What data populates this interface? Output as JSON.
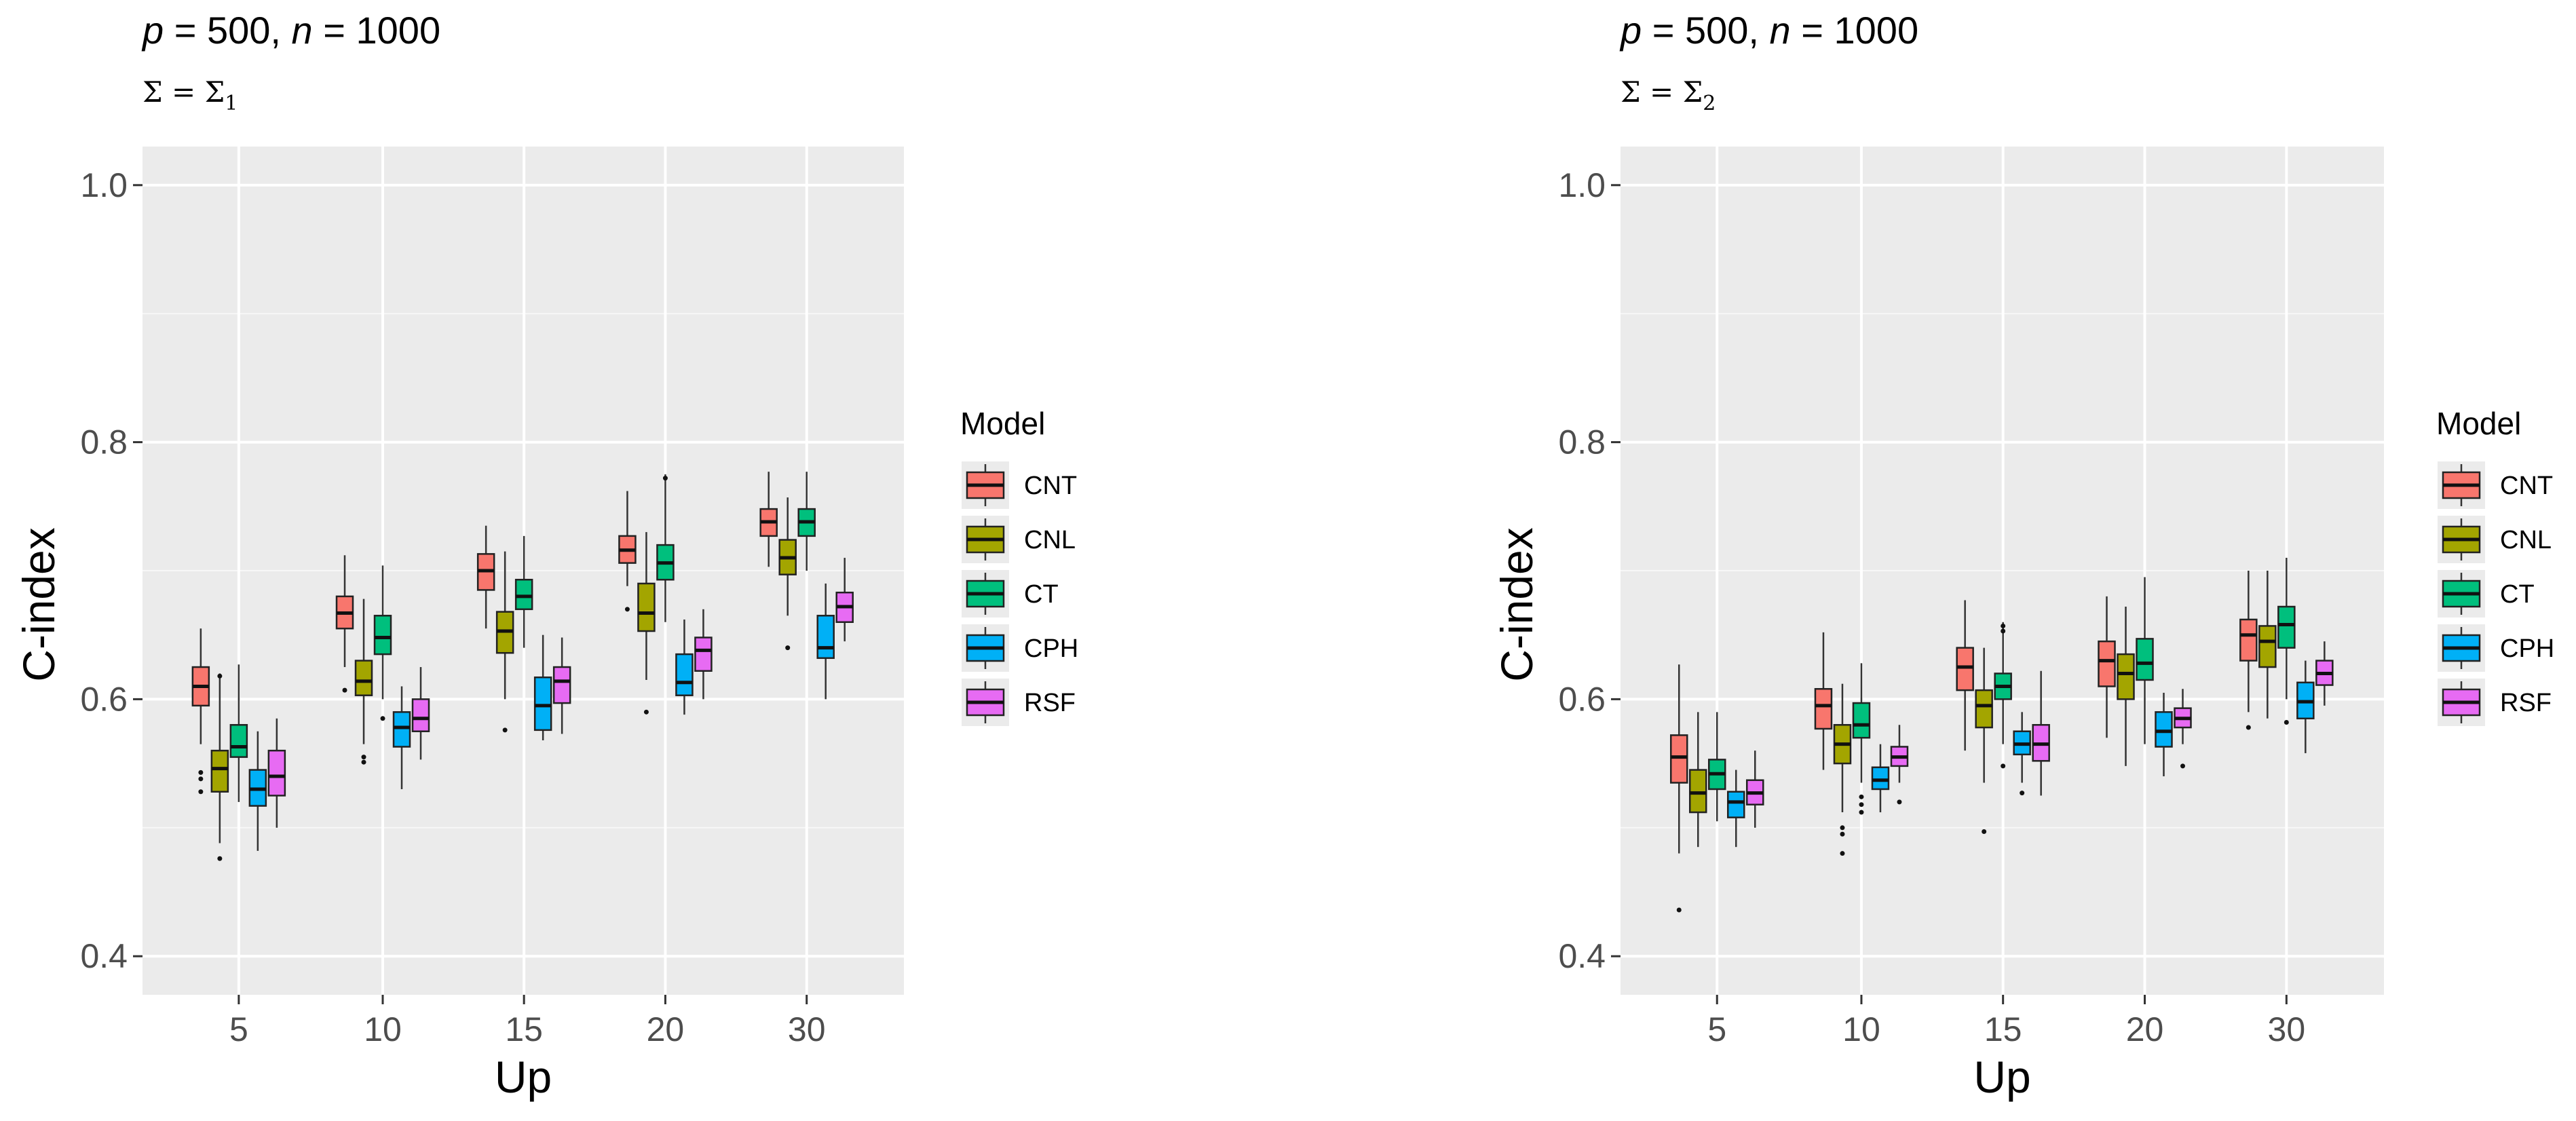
{
  "figure": {
    "legend_title": "Model"
  },
  "chart_data": [
    {
      "type": "boxplot",
      "title": "p = 500, n = 1000",
      "title_parts": {
        "p": "p",
        "p_value": " = 500, ",
        "n": "n",
        "n_value": " = 1000"
      },
      "subtitle": "Σ = Σ1",
      "subtitle_parts": {
        "lhs": "Σ = Σ",
        "sub": "1"
      },
      "xlabel": "Up",
      "ylabel": "C-index",
      "ylim": [
        0.37,
        1.03
      ],
      "yticks": [
        "0.4",
        "0.6",
        "0.8",
        "1.0"
      ],
      "ytick_values": [
        0.4,
        0.6,
        0.8,
        1.0
      ],
      "categories": [
        "5",
        "10",
        "15",
        "20",
        "30"
      ],
      "legend": {
        "title": "Model",
        "position": "right"
      },
      "series": [
        {
          "name": "CNT",
          "color": "#F8766D",
          "boxes": [
            {
              "q1": 0.595,
              "median": 0.61,
              "q3": 0.625,
              "low": 0.565,
              "high": 0.655,
              "outliers": [
                0.543,
                0.538,
                0.528
              ]
            },
            {
              "q1": 0.655,
              "median": 0.667,
              "q3": 0.68,
              "low": 0.625,
              "high": 0.712,
              "outliers": [
                0.607
              ]
            },
            {
              "q1": 0.685,
              "median": 0.7,
              "q3": 0.713,
              "low": 0.655,
              "high": 0.735,
              "outliers": []
            },
            {
              "q1": 0.706,
              "median": 0.716,
              "q3": 0.727,
              "low": 0.688,
              "high": 0.762,
              "outliers": [
                0.67
              ]
            },
            {
              "q1": 0.727,
              "median": 0.738,
              "q3": 0.748,
              "low": 0.703,
              "high": 0.777,
              "outliers": []
            }
          ]
        },
        {
          "name": "CNL",
          "color": "#A3A500",
          "boxes": [
            {
              "q1": 0.528,
              "median": 0.546,
              "q3": 0.56,
              "low": 0.488,
              "high": 0.62,
              "outliers": [
                0.476,
                0.618
              ]
            },
            {
              "q1": 0.603,
              "median": 0.614,
              "q3": 0.63,
              "low": 0.565,
              "high": 0.678,
              "outliers": [
                0.555,
                0.551
              ]
            },
            {
              "q1": 0.636,
              "median": 0.653,
              "q3": 0.668,
              "low": 0.6,
              "high": 0.715,
              "outliers": [
                0.576
              ]
            },
            {
              "q1": 0.653,
              "median": 0.667,
              "q3": 0.69,
              "low": 0.615,
              "high": 0.73,
              "outliers": [
                0.59
              ]
            },
            {
              "q1": 0.697,
              "median": 0.71,
              "q3": 0.724,
              "low": 0.665,
              "high": 0.757,
              "outliers": [
                0.64
              ]
            }
          ]
        },
        {
          "name": "CT",
          "color": "#00BF7D",
          "boxes": [
            {
              "q1": 0.555,
              "median": 0.563,
              "q3": 0.58,
              "low": 0.52,
              "high": 0.627,
              "outliers": []
            },
            {
              "q1": 0.635,
              "median": 0.648,
              "q3": 0.665,
              "low": 0.6,
              "high": 0.704,
              "outliers": [
                0.585
              ]
            },
            {
              "q1": 0.67,
              "median": 0.68,
              "q3": 0.693,
              "low": 0.64,
              "high": 0.727,
              "outliers": []
            },
            {
              "q1": 0.693,
              "median": 0.706,
              "q3": 0.72,
              "low": 0.66,
              "high": 0.775,
              "outliers": [
                0.772
              ]
            },
            {
              "q1": 0.727,
              "median": 0.738,
              "q3": 0.748,
              "low": 0.7,
              "high": 0.777,
              "outliers": []
            }
          ]
        },
        {
          "name": "CPH",
          "color": "#00B0F6",
          "boxes": [
            {
              "q1": 0.517,
              "median": 0.53,
              "q3": 0.545,
              "low": 0.482,
              "high": 0.575,
              "outliers": []
            },
            {
              "q1": 0.563,
              "median": 0.578,
              "q3": 0.59,
              "low": 0.53,
              "high": 0.61,
              "outliers": []
            },
            {
              "q1": 0.576,
              "median": 0.595,
              "q3": 0.617,
              "low": 0.568,
              "high": 0.65,
              "outliers": []
            },
            {
              "q1": 0.603,
              "median": 0.613,
              "q3": 0.635,
              "low": 0.588,
              "high": 0.662,
              "outliers": []
            },
            {
              "q1": 0.632,
              "median": 0.64,
              "q3": 0.665,
              "low": 0.6,
              "high": 0.69,
              "outliers": []
            }
          ]
        },
        {
          "name": "RSF",
          "color": "#E76BF3",
          "boxes": [
            {
              "q1": 0.525,
              "median": 0.54,
              "q3": 0.56,
              "low": 0.5,
              "high": 0.585,
              "outliers": []
            },
            {
              "q1": 0.575,
              "median": 0.585,
              "q3": 0.6,
              "low": 0.553,
              "high": 0.625,
              "outliers": []
            },
            {
              "q1": 0.597,
              "median": 0.614,
              "q3": 0.625,
              "low": 0.573,
              "high": 0.648,
              "outliers": []
            },
            {
              "q1": 0.622,
              "median": 0.638,
              "q3": 0.648,
              "low": 0.6,
              "high": 0.67,
              "outliers": []
            },
            {
              "q1": 0.66,
              "median": 0.672,
              "q3": 0.683,
              "low": 0.645,
              "high": 0.71,
              "outliers": []
            }
          ]
        }
      ]
    },
    {
      "type": "boxplot",
      "title": "p = 500, n = 1000",
      "title_parts": {
        "p": "p",
        "p_value": " = 500, ",
        "n": "n",
        "n_value": " = 1000"
      },
      "subtitle": "Σ = Σ2",
      "subtitle_parts": {
        "lhs": "Σ = Σ",
        "sub": "2"
      },
      "xlabel": "Up",
      "ylabel": "C-index",
      "ylim": [
        0.37,
        1.03
      ],
      "yticks": [
        "0.4",
        "0.6",
        "0.8",
        "1.0"
      ],
      "ytick_values": [
        0.4,
        0.6,
        0.8,
        1.0
      ],
      "categories": [
        "5",
        "10",
        "15",
        "20",
        "30"
      ],
      "legend": {
        "title": "Model",
        "position": "right"
      },
      "series": [
        {
          "name": "CNT",
          "color": "#F8766D",
          "boxes": [
            {
              "q1": 0.535,
              "median": 0.555,
              "q3": 0.572,
              "low": 0.48,
              "high": 0.627,
              "outliers": [
                0.436
              ]
            },
            {
              "q1": 0.577,
              "median": 0.595,
              "q3": 0.608,
              "low": 0.545,
              "high": 0.652,
              "outliers": []
            },
            {
              "q1": 0.607,
              "median": 0.625,
              "q3": 0.64,
              "low": 0.56,
              "high": 0.677,
              "outliers": []
            },
            {
              "q1": 0.61,
              "median": 0.63,
              "q3": 0.645,
              "low": 0.57,
              "high": 0.68,
              "outliers": []
            },
            {
              "q1": 0.63,
              "median": 0.65,
              "q3": 0.662,
              "low": 0.59,
              "high": 0.7,
              "outliers": [
                0.578
              ]
            }
          ]
        },
        {
          "name": "CNL",
          "color": "#A3A500",
          "boxes": [
            {
              "q1": 0.512,
              "median": 0.527,
              "q3": 0.545,
              "low": 0.485,
              "high": 0.59,
              "outliers": []
            },
            {
              "q1": 0.55,
              "median": 0.565,
              "q3": 0.58,
              "low": 0.512,
              "high": 0.612,
              "outliers": [
                0.5,
                0.495,
                0.48
              ]
            },
            {
              "q1": 0.578,
              "median": 0.595,
              "q3": 0.607,
              "low": 0.535,
              "high": 0.64,
              "outliers": [
                0.497
              ]
            },
            {
              "q1": 0.6,
              "median": 0.62,
              "q3": 0.635,
              "low": 0.548,
              "high": 0.672,
              "outliers": []
            },
            {
              "q1": 0.625,
              "median": 0.645,
              "q3": 0.657,
              "low": 0.585,
              "high": 0.7,
              "outliers": []
            }
          ]
        },
        {
          "name": "CT",
          "color": "#00BF7D",
          "boxes": [
            {
              "q1": 0.53,
              "median": 0.542,
              "q3": 0.553,
              "low": 0.505,
              "high": 0.59,
              "outliers": []
            },
            {
              "q1": 0.57,
              "median": 0.58,
              "q3": 0.597,
              "low": 0.535,
              "high": 0.628,
              "outliers": [
                0.524,
                0.518,
                0.512
              ]
            },
            {
              "q1": 0.6,
              "median": 0.61,
              "q3": 0.62,
              "low": 0.565,
              "high": 0.66,
              "outliers": [
                0.657,
                0.653,
                0.548
              ]
            },
            {
              "q1": 0.615,
              "median": 0.628,
              "q3": 0.647,
              "low": 0.565,
              "high": 0.695,
              "outliers": []
            },
            {
              "q1": 0.64,
              "median": 0.658,
              "q3": 0.672,
              "low": 0.6,
              "high": 0.71,
              "outliers": [
                0.582
              ]
            }
          ]
        },
        {
          "name": "CPH",
          "color": "#00B0F6",
          "boxes": [
            {
              "q1": 0.508,
              "median": 0.52,
              "q3": 0.528,
              "low": 0.485,
              "high": 0.545,
              "outliers": []
            },
            {
              "q1": 0.53,
              "median": 0.537,
              "q3": 0.547,
              "low": 0.512,
              "high": 0.565,
              "outliers": []
            },
            {
              "q1": 0.557,
              "median": 0.565,
              "q3": 0.575,
              "low": 0.535,
              "high": 0.59,
              "outliers": [
                0.527
              ]
            },
            {
              "q1": 0.563,
              "median": 0.575,
              "q3": 0.59,
              "low": 0.54,
              "high": 0.605,
              "outliers": []
            },
            {
              "q1": 0.585,
              "median": 0.598,
              "q3": 0.613,
              "low": 0.558,
              "high": 0.63,
              "outliers": []
            }
          ]
        },
        {
          "name": "RSF",
          "color": "#E76BF3",
          "boxes": [
            {
              "q1": 0.518,
              "median": 0.527,
              "q3": 0.537,
              "low": 0.5,
              "high": 0.56,
              "outliers": []
            },
            {
              "q1": 0.548,
              "median": 0.555,
              "q3": 0.563,
              "low": 0.535,
              "high": 0.58,
              "outliers": [
                0.52
              ]
            },
            {
              "q1": 0.552,
              "median": 0.565,
              "q3": 0.58,
              "low": 0.525,
              "high": 0.622,
              "outliers": []
            },
            {
              "q1": 0.578,
              "median": 0.585,
              "q3": 0.593,
              "low": 0.565,
              "high": 0.608,
              "outliers": [
                0.548
              ]
            },
            {
              "q1": 0.611,
              "median": 0.62,
              "q3": 0.63,
              "low": 0.595,
              "high": 0.645,
              "outliers": []
            }
          ]
        }
      ]
    }
  ]
}
